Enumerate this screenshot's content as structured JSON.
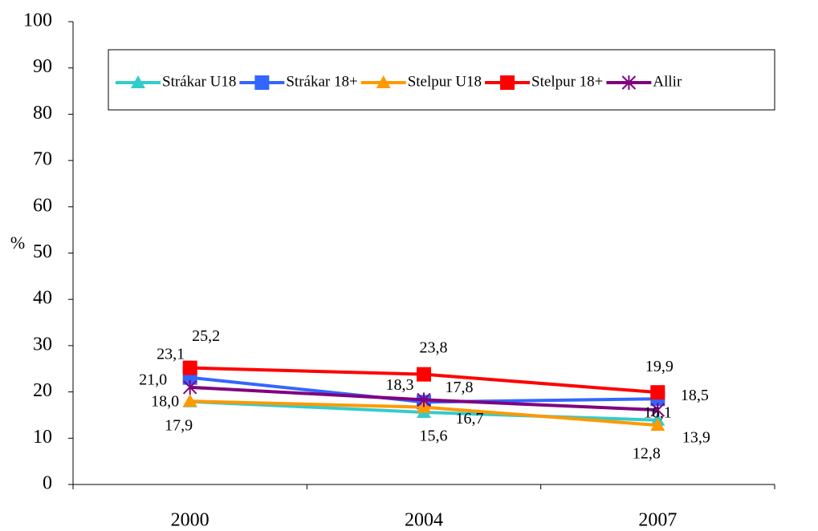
{
  "chart_data": {
    "type": "line",
    "ylabel": "%",
    "categories": [
      "2000",
      "2004",
      "2007"
    ],
    "ylim": [
      0,
      100
    ],
    "yticks": [
      0,
      10,
      20,
      30,
      40,
      50,
      60,
      70,
      80,
      90,
      100
    ],
    "legend": "top",
    "series": [
      {
        "name": "Strákar U18",
        "color": "#33cccc",
        "marker": "triangle",
        "values": [
          17.9,
          15.6,
          13.9
        ],
        "value_labels": [
          "17,9",
          "15,6",
          "13,9"
        ]
      },
      {
        "name": "Strákar 18+",
        "color": "#3366ff",
        "marker": "square",
        "values": [
          23.1,
          17.8,
          18.5
        ],
        "value_labels": [
          "23,1",
          "17,8",
          "18,5"
        ]
      },
      {
        "name": "Stelpur U18",
        "color": "#ff9900",
        "marker": "triangle",
        "values": [
          18.0,
          16.7,
          12.8
        ],
        "value_labels": [
          "18,0",
          "16,7",
          "12,8"
        ]
      },
      {
        "name": "Stelpur 18+",
        "color": "#ff0000",
        "marker": "square",
        "values": [
          25.2,
          23.8,
          19.9
        ],
        "value_labels": [
          "25,2",
          "23,8",
          "19,9"
        ]
      },
      {
        "name": "Allir",
        "color": "#800080",
        "marker": "star",
        "values": [
          21.0,
          18.3,
          16.1
        ],
        "value_labels": [
          "21,0",
          "18,3",
          "16,1"
        ]
      }
    ]
  }
}
